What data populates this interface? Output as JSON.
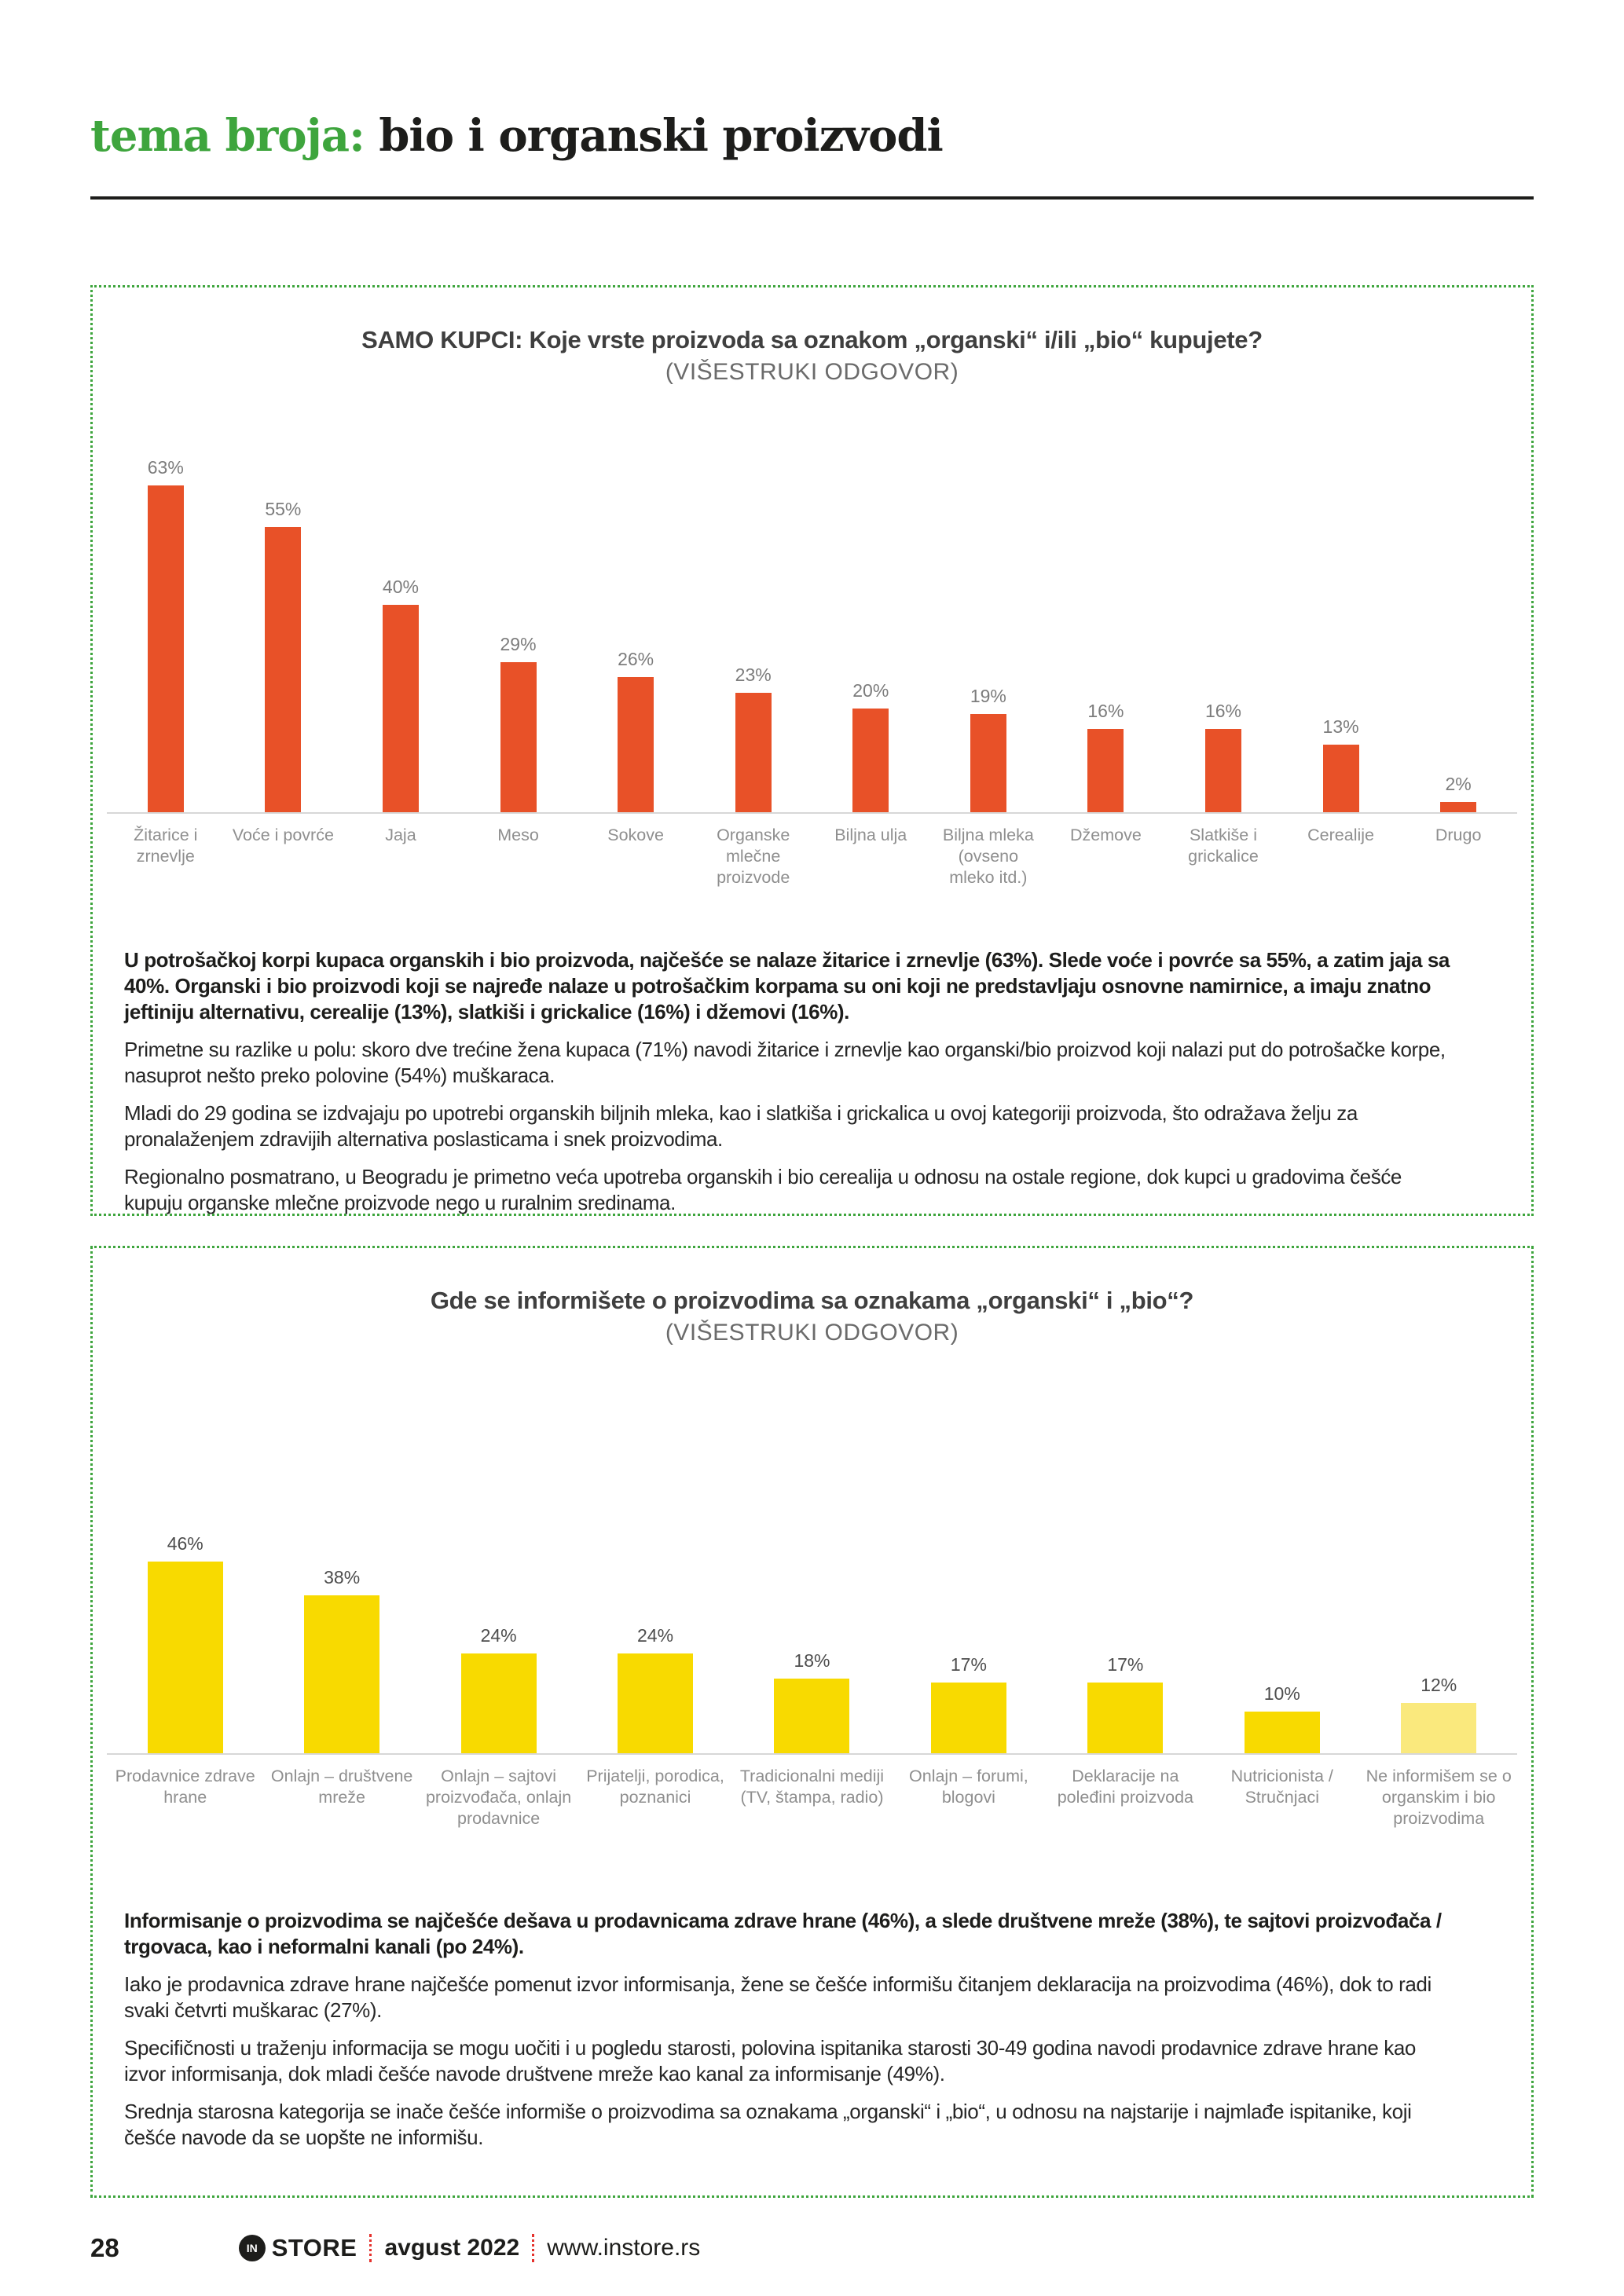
{
  "header": {
    "kicker": "tema broja:",
    "title": "bio i organski proizvodi"
  },
  "chart_data": [
    {
      "type": "bar",
      "title": "SAMO KUPCI: Koje vrste proizvoda sa oznakom „organski“ i/ili „bio“ kupujete?",
      "subtitle": "(VIŠESTRUKI ODGOVOR)",
      "categories": [
        "Žitarice i zrnevlje",
        "Voće i povrće",
        "Jaja",
        "Meso",
        "Sokove",
        "Organske mlečne proizvode",
        "Biljna ulja",
        "Biljna mleka (ovseno mleko itd.)",
        "Džemove",
        "Slatkiše i grickalice",
        "Cerealije",
        "Drugo"
      ],
      "values": [
        63,
        55,
        40,
        29,
        26,
        23,
        20,
        19,
        16,
        16,
        13,
        2
      ],
      "value_suffix": "%",
      "bar_color": "#e85128",
      "value_color": "#7c7c7c",
      "xlabel": "",
      "ylabel": "",
      "ylim": [
        0,
        70
      ],
      "grid": false,
      "legend": false
    },
    {
      "type": "bar",
      "title": "Gde se informišete o proizvodima sa oznakama „organski“ i „bio“?",
      "subtitle": "(VIŠESTRUKI ODGOVOR)",
      "categories": [
        "Prodavnice zdrave hrane",
        "Onlajn – društvene mreže",
        "Onlajn – sajtovi proizvođača, onlajn prodavnice",
        "Prijatelji, porodica, poznanici",
        "Tradicionalni mediji (TV, štampa, radio)",
        "Onlajn – forumi, blogovi",
        "Deklaracije na poleđini proizvoda",
        "Nutricionista / Stručnjaci",
        "Ne informišem se o organskim i bio proizvodima"
      ],
      "values": [
        46,
        38,
        24,
        24,
        18,
        17,
        17,
        10,
        12
      ],
      "value_suffix": "%",
      "bar_color": "#f8da00",
      "last_bar_color": "#fae97d",
      "value_color": "#4d4d4d",
      "xlabel": "",
      "ylabel": "",
      "ylim": [
        0,
        50
      ],
      "grid": false,
      "legend": false
    }
  ],
  "section1": {
    "paragraphs": [
      {
        "bold": true,
        "text": "U potrošačkoj korpi kupaca organskih i bio proizvoda, najčešće se nalaze žitarice i zrnevlje (63%). Slede voće i povrće sa 55%, a zatim jaja sa 40%. Organski i bio proizvodi koji se najređe nalaze u potrošačkim korpama su oni koji ne predstavljaju osnovne namirnice, a imaju znatno jeftiniju alternativu, cerealije (13%), slatkiši i grickalice (16%) i džemovi (16%)."
      },
      {
        "bold": false,
        "text": "Primetne su razlike u polu: skoro dve trećine žena kupaca (71%) navodi žitarice i zrnevlje kao organski/bio proizvod koji nalazi put do potrošačke korpe, nasuprot nešto preko polovine (54%) muškaraca."
      },
      {
        "bold": false,
        "text": "Mladi do 29 godina se izdvajaju po upotrebi organskih biljnih mleka, kao i slatkiša i grickalica u ovoj kategoriji proizvoda, što odražava želju za pronalaženjem zdravijih alternativa poslasticama i snek proizvodima."
      },
      {
        "bold": false,
        "text": "Regionalno posmatrano, u Beogradu je primetno veća upotreba organskih i bio cerealija u odnosu na ostale regione, dok kupci u gradovima češće kupuju organske mlečne proizvode nego u ruralnim sredinama."
      }
    ]
  },
  "section2": {
    "paragraphs": [
      {
        "bold": true,
        "text": "Informisanje o proizvodima se najčešće dešava u prodavnicama zdrave hrane (46%), a slede društvene mreže (38%), te sajtovi proizvođača / trgovaca, kao i neformalni kanali (po 24%)."
      },
      {
        "bold": false,
        "text": "Iako je prodavnica zdrave hrane najčešće pomenut izvor informisanja, žene se češće informišu čitanjem deklaracija na proizvodima (46%), dok to radi svaki četvrti muškarac (27%)."
      },
      {
        "bold": false,
        "text": "Specifičnosti u traženju informacija se mogu uočiti i u pogledu starosti, polovina ispitanika starosti 30-49 godina navodi prodavnice zdrave hrane kao izvor informisanja, dok mladi češće navode društvene mreže kao kanal za informisanje (49%)."
      },
      {
        "bold": false,
        "text": "Srednja starosna kategorija se inače češće informiše o proizvodima sa oznakama „organski“ i „bio“, u odnosu na najstarije i najmlađe ispitanike, koji češće navode da se uopšte ne informišu."
      }
    ]
  },
  "footer": {
    "page_number": "28",
    "logo_in": "IN",
    "logo_store": "STORE",
    "issue": "avgust 2022",
    "website": "www.instore.rs"
  }
}
